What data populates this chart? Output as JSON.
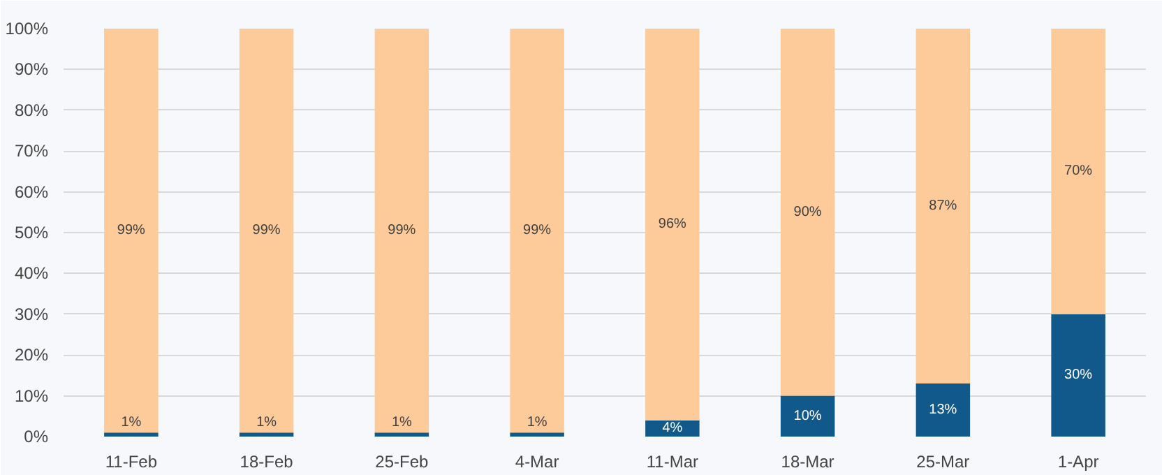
{
  "chart_data": {
    "type": "bar",
    "stacked": true,
    "grid": "y",
    "categories": [
      "11-Feb",
      "18-Feb",
      "25-Feb",
      "4-Mar",
      "11-Mar",
      "18-Mar",
      "25-Mar",
      "1-Apr"
    ],
    "series": [
      {
        "color": "#11598a",
        "values": [
          1,
          1,
          1,
          1,
          4,
          10,
          13,
          30
        ],
        "value_labels": [
          "1%",
          "1%",
          "1%",
          "1%",
          "4%",
          "10%",
          "13%",
          "30%"
        ]
      },
      {
        "color": "#fdca99",
        "values": [
          99,
          99,
          99,
          99,
          96,
          90,
          87,
          70
        ],
        "value_labels": [
          "99%",
          "99%",
          "99%",
          "99%",
          "96%",
          "90%",
          "87%",
          "70%"
        ]
      }
    ],
    "ylim": [
      0,
      100
    ],
    "yticks": [
      {
        "value": 0,
        "label": "0%"
      },
      {
        "value": 10,
        "label": "10%"
      },
      {
        "value": 20,
        "label": "20%"
      },
      {
        "value": 30,
        "label": "30%"
      },
      {
        "value": 40,
        "label": "40%"
      },
      {
        "value": 50,
        "label": "50%"
      },
      {
        "value": 60,
        "label": "60%"
      },
      {
        "value": 70,
        "label": "70%"
      },
      {
        "value": 80,
        "label": "80%"
      },
      {
        "value": 90,
        "label": "90%"
      },
      {
        "value": 100,
        "label": "100%"
      }
    ]
  }
}
